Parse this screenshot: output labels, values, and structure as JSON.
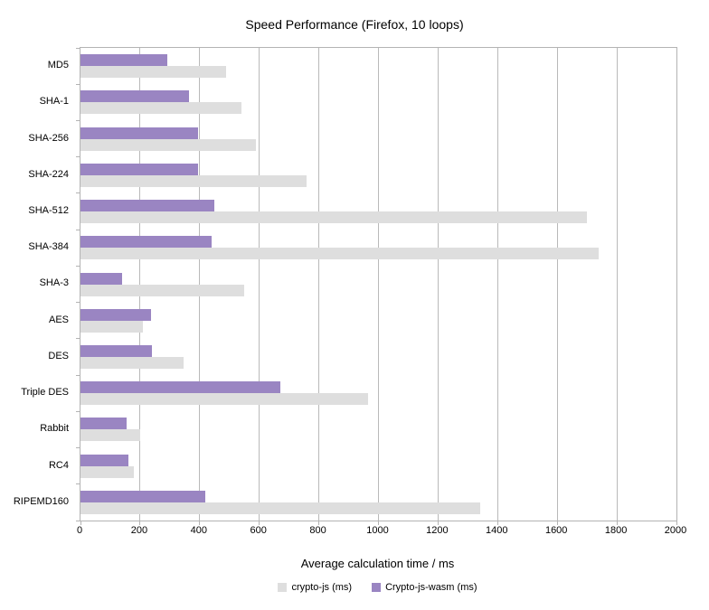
{
  "chart_data": {
    "type": "bar",
    "orientation": "horizontal",
    "title": "Speed Performance (Firefox, 10 loops)",
    "xlabel": "Average calculation time / ms",
    "categories": [
      "MD5",
      "SHA-1",
      "SHA-256",
      "SHA-224",
      "SHA-512",
      "SHA-384",
      "SHA-3",
      "AES",
      "DES",
      "Triple DES",
      "Rabbit",
      "RC4",
      "RIPEMD160"
    ],
    "series": [
      {
        "name": "crypto-js (ms)",
        "color": "#dedede",
        "values": [
          490,
          540,
          590,
          760,
          1700,
          1740,
          550,
          210,
          345,
          965,
          200,
          180,
          1340
        ]
      },
      {
        "name": "Crypto-js-wasm (ms)",
        "color": "#9a85c2",
        "values": [
          290,
          365,
          395,
          395,
          450,
          440,
          140,
          237,
          240,
          670,
          155,
          160,
          420
        ]
      }
    ],
    "xlim": [
      0,
      2000
    ],
    "xticks": [
      0,
      200,
      400,
      600,
      800,
      1000,
      1200,
      1400,
      1600,
      1800,
      2000
    ],
    "grid": true,
    "legend_position": "bottom",
    "colors": {
      "gridline": "#b9b9b9",
      "axis": "#b3b3b3",
      "text": "#000000",
      "background": "#ffffff"
    }
  }
}
